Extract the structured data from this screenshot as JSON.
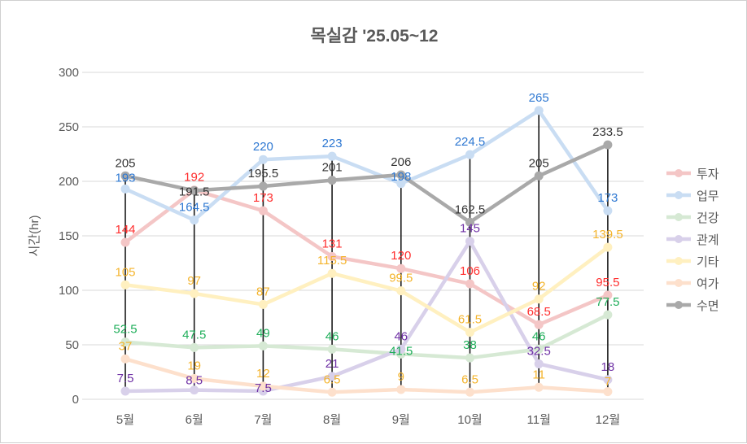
{
  "chart_data": {
    "type": "line",
    "title": "목실감 '25.05~12",
    "xlabel": "",
    "ylabel": "시간(hr)",
    "ylim": [
      0,
      300
    ],
    "yticks": [
      0,
      50,
      100,
      150,
      200,
      250,
      300
    ],
    "grid": true,
    "legend_position": "right",
    "categories": [
      "5월",
      "6월",
      "7월",
      "8월",
      "9월",
      "10월",
      "11월",
      "12월"
    ],
    "series": [
      {
        "name": "투자",
        "line_color": "#f4c6c6",
        "label_color": "#ff2e2e",
        "values": [
          144,
          192,
          173,
          131,
          120,
          106,
          68.5,
          95.5
        ]
      },
      {
        "name": "업무",
        "line_color": "#c9ddf3",
        "label_color": "#2e78d2",
        "values": [
          193,
          164.5,
          220,
          223,
          198,
          224.5,
          265,
          173
        ]
      },
      {
        "name": "건강",
        "line_color": "#d6e9d4",
        "label_color": "#1fae5a",
        "values": [
          52.5,
          47.5,
          49,
          46,
          41.5,
          38,
          46,
          77.5
        ]
      },
      {
        "name": "관계",
        "line_color": "#d8d0ea",
        "label_color": "#6f31a5",
        "values": [
          7.5,
          8.5,
          7.5,
          21,
          46,
          145,
          32.5,
          18
        ]
      },
      {
        "name": "기타",
        "line_color": "#fff0c0",
        "label_color": "#f4b42c",
        "values": [
          105,
          97,
          87,
          115.5,
          99.5,
          61.5,
          92,
          139.5
        ]
      },
      {
        "name": "여가",
        "line_color": "#fde0cc",
        "label_color": "#f4b42c",
        "values": [
          37,
          19,
          12,
          6.5,
          9,
          6.5,
          11,
          7
        ]
      },
      {
        "name": "수면",
        "line_color": "#a9a9a9",
        "label_color": "#333333",
        "values": [
          205,
          191.5,
          195.5,
          201,
          206,
          162.5,
          205,
          233.5
        ]
      }
    ]
  }
}
